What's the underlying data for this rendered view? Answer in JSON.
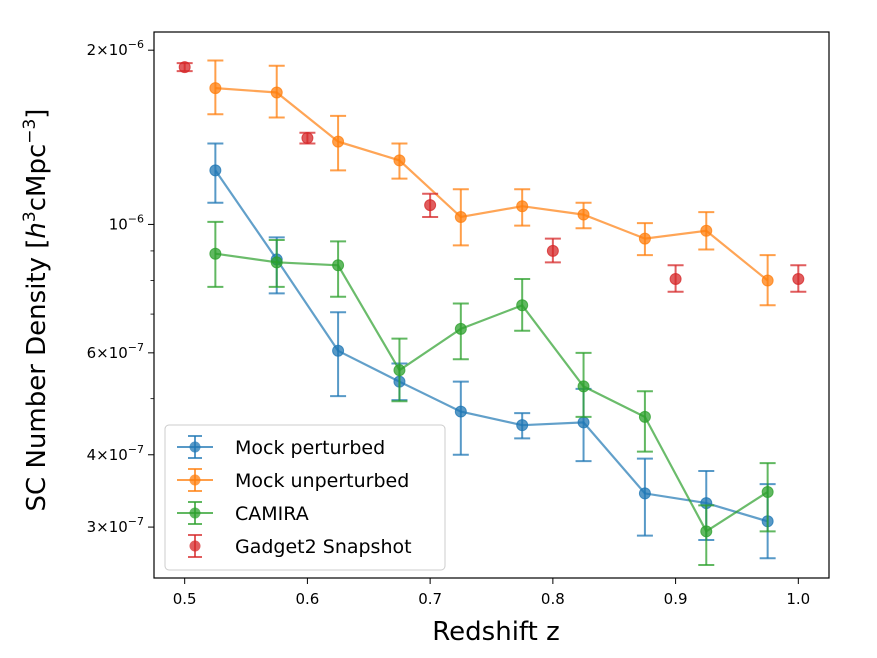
{
  "chart_data": {
    "type": "line",
    "xlabel": "Redshift z",
    "ylabel": {
      "prefix": "SC Number Density [",
      "h": "h",
      "sup3": "3",
      "mid": "cMpc",
      "supm3": "−3",
      "suffix": "]"
    },
    "yscale": "log",
    "xlim": [
      0.475,
      1.025
    ],
    "ylim": [
      2.45e-07,
      2.15e-06
    ],
    "x_ticks": [
      {
        "value": 0.5,
        "label": "0.5"
      },
      {
        "value": 0.6,
        "label": "0.6"
      },
      {
        "value": 0.7,
        "label": "0.7"
      },
      {
        "value": 0.8,
        "label": "0.8"
      },
      {
        "value": 0.9,
        "label": "0.9"
      },
      {
        "value": 1.0,
        "label": "1.0"
      }
    ],
    "y_major_ticks": [
      {
        "value": 1e-06,
        "mantissa": "",
        "exponent": "−6",
        "label": "10"
      },
      {
        "value": 2e-06,
        "mantissa": "2×",
        "exponent": "−6",
        "label": "10"
      },
      {
        "value": 6e-07,
        "mantissa": "6×",
        "exponent": "−7",
        "label": "10"
      },
      {
        "value": 4e-07,
        "mantissa": "4×",
        "exponent": "−7",
        "label": "10"
      },
      {
        "value": 3e-07,
        "mantissa": "3×",
        "exponent": "−7",
        "label": "10"
      }
    ],
    "y_minor_ticks": [
      5e-07,
      7e-07,
      8e-07,
      9e-07
    ],
    "series": [
      {
        "name": "Mock perturbed",
        "color": "#1f77b4",
        "line": true,
        "x": [
          0.525,
          0.575,
          0.625,
          0.675,
          0.725,
          0.775,
          0.825,
          0.875,
          0.925,
          0.975
        ],
        "y": [
          1.24e-06,
          8.7e-07,
          6.05e-07,
          5.35e-07,
          4.75e-07,
          4.5e-07,
          4.55e-07,
          3.43e-07,
          3.3e-07,
          3.07e-07
        ],
        "y_low": [
          1.09e-06,
          7.6e-07,
          5.05e-07,
          4.97e-07,
          4e-07,
          4.27e-07,
          3.9e-07,
          2.9e-07,
          2.85e-07,
          2.65e-07
        ],
        "y_high": [
          1.38e-06,
          9.5e-07,
          7.05e-07,
          5.75e-07,
          5.35e-07,
          4.72e-07,
          5.2e-07,
          3.94e-07,
          3.75e-07,
          3.56e-07
        ]
      },
      {
        "name": "Mock unperturbed",
        "color": "#ff7f0e",
        "line": true,
        "x": [
          0.525,
          0.575,
          0.625,
          0.675,
          0.725,
          0.775,
          0.825,
          0.875,
          0.925,
          0.975
        ],
        "y": [
          1.72e-06,
          1.69e-06,
          1.39e-06,
          1.29e-06,
          1.03e-06,
          1.075e-06,
          1.04e-06,
          9.45e-07,
          9.75e-07,
          8e-07
        ],
        "y_low": [
          1.55e-06,
          1.53e-06,
          1.24e-06,
          1.2e-06,
          9.2e-07,
          9.95e-07,
          9.85e-07,
          8.85e-07,
          9.05e-07,
          7.25e-07
        ],
        "y_high": [
          1.92e-06,
          1.88e-06,
          1.54e-06,
          1.38e-06,
          1.15e-06,
          1.15e-06,
          1.09e-06,
          1.005e-06,
          1.05e-06,
          8.85e-07
        ]
      },
      {
        "name": "CAMIRA",
        "color": "#2ca02c",
        "line": true,
        "x": [
          0.525,
          0.575,
          0.625,
          0.675,
          0.725,
          0.775,
          0.825,
          0.875,
          0.925,
          0.975
        ],
        "y": [
          8.9e-07,
          8.6e-07,
          8.5e-07,
          5.6e-07,
          6.6e-07,
          7.25e-07,
          5.25e-07,
          4.65e-07,
          2.95e-07,
          3.45e-07
        ],
        "y_low": [
          7.8e-07,
          7.8e-07,
          7.5e-07,
          4.95e-07,
          5.85e-07,
          6.55e-07,
          4.65e-07,
          4.05e-07,
          2.58e-07,
          2.95e-07
        ],
        "y_high": [
          1.01e-06,
          9.4e-07,
          9.35e-07,
          6.35e-07,
          7.3e-07,
          8.05e-07,
          6e-07,
          5.15e-07,
          3.27e-07,
          3.87e-07
        ]
      },
      {
        "name": "Gadget2 Snapshot",
        "color": "#d62728",
        "line": false,
        "x": [
          0.5,
          0.6,
          0.7,
          0.8,
          0.9,
          1.0
        ],
        "y": [
          1.87e-06,
          1.41e-06,
          1.08e-06,
          9e-07,
          8.05e-07,
          8.05e-07
        ],
        "y_low": [
          1.84e-06,
          1.38e-06,
          1.03e-06,
          8.6e-07,
          7.65e-07,
          7.65e-07
        ],
        "y_high": [
          1.9e-06,
          1.44e-06,
          1.13e-06,
          9.45e-07,
          8.5e-07,
          8.5e-07
        ]
      }
    ],
    "legend": "lower-left"
  }
}
